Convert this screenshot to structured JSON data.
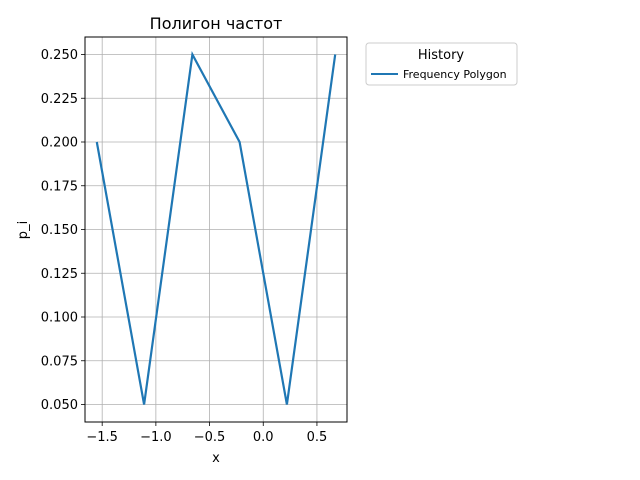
{
  "chart_data": {
    "type": "line",
    "title": "Полигон частот",
    "xlabel": "x",
    "ylabel": "p_i",
    "xlim": [
      -1.66,
      0.78
    ],
    "ylim": [
      0.04,
      0.26
    ],
    "xticks": [
      -1.5,
      -1.0,
      -0.5,
      0.0,
      0.5
    ],
    "xtick_labels": [
      "−1.5",
      "−1.0",
      "−0.5",
      "0.0",
      "0.5"
    ],
    "yticks": [
      0.05,
      0.075,
      0.1,
      0.125,
      0.15,
      0.175,
      0.2,
      0.225,
      0.25
    ],
    "ytick_labels": [
      "0.050",
      "0.075",
      "0.100",
      "0.125",
      "0.150",
      "0.175",
      "0.200",
      "0.225",
      "0.250"
    ],
    "grid": true,
    "legend": {
      "title": "History",
      "placement": "outside-right-top"
    },
    "series": [
      {
        "name": "Frequency Polygon",
        "color": "#1f77b4",
        "x": [
          -1.55,
          -1.11,
          -0.66,
          -0.22,
          0.22,
          0.67
        ],
        "y": [
          0.2,
          0.05,
          0.25,
          0.2,
          0.05,
          0.25
        ]
      }
    ]
  }
}
